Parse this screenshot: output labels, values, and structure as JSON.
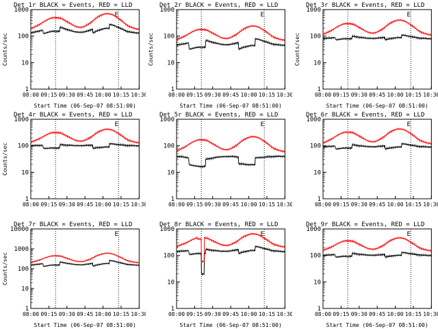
{
  "chart_data": [
    {
      "type": "line",
      "title": "Det 1r BLACK = Events, RED = LLD",
      "xlabel": "Start Time (06-Sep-07 08:51:00)",
      "ylabel": "Counts/sec",
      "log_y": true,
      "ylim": [
        1,
        1000
      ],
      "xlim": [
        0,
        105
      ],
      "x_tick_labels": [
        "08:00",
        "09:15",
        "09:30",
        "09:45",
        "10:00",
        "10:15",
        "10:30"
      ],
      "y_tick_labels": [
        "1",
        "10",
        "100",
        "1000"
      ],
      "markers": [
        {
          "x": 24,
          "label": ""
        },
        {
          "x": 85,
          "label": "E"
        }
      ],
      "series": [
        {
          "color": "#000000",
          "shape": {
            "base": 130,
            "peak1": 220,
            "peak2": 280,
            "center1": 24,
            "center2": 74,
            "width1": 10,
            "width2": 10,
            "step_x": [
              12,
              60
            ],
            "step_depth": 0.7
          }
        },
        {
          "color": "#ff0000",
          "shape": {
            "base": 180,
            "peak1": 500,
            "peak2": 700,
            "center1": 24,
            "center2": 74,
            "width1": 10,
            "width2": 10
          }
        }
      ]
    },
    {
      "type": "line",
      "title": "Det 2r BLACK = Events, RED = LLD",
      "xlabel": "Start Time (06-Sep-07 08:51:00)",
      "ylabel": "Counts/sec",
      "log_y": true,
      "ylim": [
        1,
        1000
      ],
      "xlim": [
        0,
        105
      ],
      "x_tick_labels": [
        "08:00",
        "09:15",
        "09:30",
        "09:45",
        "10:00",
        "10:15",
        "10:30"
      ],
      "y_tick_labels": [
        "1",
        "10",
        "100",
        "1000"
      ],
      "markers": [
        {
          "x": 24,
          "label": ""
        },
        {
          "x": 85,
          "label": "E"
        }
      ],
      "series": [
        {
          "color": "#000000",
          "shape": {
            "base": 45,
            "peak1": 70,
            "peak2": 80,
            "center1": 24,
            "center2": 74,
            "width1": 10,
            "width2": 10,
            "step_x": [
              12,
              60
            ],
            "step_depth": 0.55
          }
        },
        {
          "color": "#ff0000",
          "shape": {
            "base": 70,
            "peak1": 180,
            "peak2": 240,
            "center1": 24,
            "center2": 74,
            "width1": 10,
            "width2": 10
          }
        }
      ]
    },
    {
      "type": "line",
      "title": "Det 3r BLACK = Events, RED = LLD",
      "xlabel": "Start Time (06-Sep-07 08:51:00)",
      "ylabel": "Counts/sec",
      "log_y": true,
      "ylim": [
        1,
        1000
      ],
      "xlim": [
        0,
        105
      ],
      "x_tick_labels": [
        "08:00",
        "09:15",
        "09:30",
        "09:45",
        "10:00",
        "10:15",
        "10:30"
      ],
      "y_tick_labels": [
        "1",
        "10",
        "100",
        "1000"
      ],
      "markers": [
        {
          "x": 24,
          "label": ""
        },
        {
          "x": 85,
          "label": "E"
        }
      ],
      "series": [
        {
          "color": "#000000",
          "shape": {
            "base": 80,
            "peak1": 100,
            "peak2": 110,
            "center1": 24,
            "center2": 74,
            "width1": 10,
            "width2": 10,
            "step_x": [
              12,
              60
            ],
            "step_depth": 0.8
          }
        },
        {
          "color": "#ff0000",
          "shape": {
            "base": 110,
            "peak1": 300,
            "peak2": 400,
            "center1": 24,
            "center2": 74,
            "width1": 10,
            "width2": 10
          }
        }
      ]
    },
    {
      "type": "line",
      "title": "Det 4r BLACK = Events, RED = LLD",
      "xlabel": "",
      "ylabel": "Counts/sec",
      "log_y": true,
      "ylim": [
        1,
        1000
      ],
      "xlim": [
        0,
        105
      ],
      "x_tick_labels": [
        "08:00",
        "09:15",
        "09:30",
        "09:45",
        "10:00",
        "10:15",
        "10:30"
      ],
      "y_tick_labels": [
        "1",
        "10",
        "100",
        "1000"
      ],
      "markers": [
        {
          "x": 24,
          "label": ""
        },
        {
          "x": 85,
          "label": "E"
        }
      ],
      "series": [
        {
          "color": "#000000",
          "shape": {
            "base": 100,
            "peak1": 110,
            "peak2": 120,
            "center1": 24,
            "center2": 74,
            "width1": 10,
            "width2": 10,
            "step_x": [
              12,
              60
            ],
            "step_depth": 0.75
          }
        },
        {
          "color": "#ff0000",
          "shape": {
            "base": 130,
            "peak1": 320,
            "peak2": 420,
            "center1": 24,
            "center2": 74,
            "width1": 10,
            "width2": 10
          }
        }
      ]
    },
    {
      "type": "line",
      "title": "Det 5r BLACK = Events, RED = LLD",
      "xlabel": "",
      "ylabel": "",
      "log_y": true,
      "ylim": [
        1,
        1000
      ],
      "xlim": [
        0,
        105
      ],
      "x_tick_labels": [
        "08:00",
        "09:15",
        "09:30",
        "09:45",
        "10:00",
        "10:15",
        "10:30"
      ],
      "y_tick_labels": [
        "1",
        "10",
        "100",
        "1000"
      ],
      "markers": [
        {
          "x": 24,
          "label": ""
        },
        {
          "x": 85,
          "label": "E"
        }
      ],
      "series": [
        {
          "color": "#000000",
          "shape": {
            "base": 40,
            "peak1": 30,
            "peak2": 35,
            "center1": 24,
            "center2": 74,
            "width1": 10,
            "width2": 10,
            "step_x": [
              12,
              60
            ],
            "step_depth": 0.55
          }
        },
        {
          "color": "#ff0000",
          "shape": {
            "base": 60,
            "peak1": 170,
            "peak2": 220,
            "center1": 24,
            "center2": 74,
            "width1": 10,
            "width2": 10
          }
        }
      ]
    },
    {
      "type": "line",
      "title": "Det 6r BLACK = Events, RED = LLD",
      "xlabel": "",
      "ylabel": "",
      "log_y": true,
      "ylim": [
        1,
        1000
      ],
      "xlim": [
        0,
        105
      ],
      "x_tick_labels": [
        "08:00",
        "09:15",
        "09:30",
        "09:45",
        "10:00",
        "10:15",
        "10:30"
      ],
      "y_tick_labels": [
        "1",
        "10",
        "100",
        "1000"
      ],
      "markers": [
        {
          "x": 24,
          "label": ""
        },
        {
          "x": 85,
          "label": "E"
        }
      ],
      "series": [
        {
          "color": "#000000",
          "shape": {
            "base": 90,
            "peak1": 110,
            "peak2": 120,
            "center1": 24,
            "center2": 74,
            "width1": 10,
            "width2": 10,
            "step_x": [
              12,
              60
            ],
            "step_depth": 0.75
          }
        },
        {
          "color": "#ff0000",
          "shape": {
            "base": 120,
            "peak1": 330,
            "peak2": 430,
            "center1": 24,
            "center2": 74,
            "width1": 10,
            "width2": 10
          }
        }
      ]
    },
    {
      "type": "line",
      "title": "Det 7r BLACK = Events, RED = LLD",
      "xlabel": "Start Time (06-Sep-07 08:51:00)",
      "ylabel": "Counts/sec",
      "log_y": true,
      "ylim": [
        1,
        10000
      ],
      "xlim": [
        0,
        105
      ],
      "x_tick_labels": [
        "08:00",
        "09:15",
        "09:30",
        "09:45",
        "10:00",
        "10:15",
        "10:30"
      ],
      "y_tick_labels": [
        "1",
        "10",
        "100",
        "1000",
        "10000"
      ],
      "markers": [
        {
          "x": 24,
          "label": ""
        },
        {
          "x": 85,
          "label": "E"
        }
      ],
      "series": [
        {
          "color": "#000000",
          "shape": {
            "base": 150,
            "peak1": 220,
            "peak2": 260,
            "center1": 24,
            "center2": 74,
            "width1": 10,
            "width2": 10,
            "step_x": [
              12,
              60
            ],
            "step_depth": 0.7
          }
        },
        {
          "color": "#ff0000",
          "shape": {
            "base": 200,
            "peak1": 450,
            "peak2": 600,
            "center1": 24,
            "center2": 74,
            "width1": 10,
            "width2": 10
          }
        }
      ]
    },
    {
      "type": "line",
      "title": "Det 8r BLACK = Events, RED = LLD",
      "xlabel": "Start Time (06-Sep-07 08:51:00)",
      "ylabel": "",
      "log_y": true,
      "ylim": [
        1,
        1000
      ],
      "xlim": [
        0,
        105
      ],
      "x_tick_labels": [
        "08:00",
        "09:15",
        "09:30",
        "09:45",
        "10:00",
        "10:15",
        "10:30"
      ],
      "y_tick_labels": [
        "1",
        "10",
        "100",
        "1000"
      ],
      "markers": [
        {
          "x": 24,
          "label": ""
        },
        {
          "x": 85,
          "label": "E"
        }
      ],
      "series": [
        {
          "color": "#000000",
          "shape": {
            "base": 140,
            "peak1": 170,
            "peak2": 220,
            "center1": 24,
            "center2": 74,
            "width1": 10,
            "width2": 10,
            "step_x": [
              12,
              60
            ],
            "step_depth": 0.7,
            "dip": {
              "x": [
                24,
                27
              ],
              "value": 20
            }
          }
        },
        {
          "color": "#ff0000",
          "shape": {
            "base": 210,
            "peak1": 480,
            "peak2": 650,
            "center1": 24,
            "center2": 74,
            "width1": 10,
            "width2": 10,
            "spike": {
              "x": [
                20,
                24
              ],
              "value": 420
            },
            "dip": {
              "x": [
                24,
                27
              ],
              "value": 60
            }
          }
        }
      ]
    },
    {
      "type": "line",
      "title": "Det 9r BLACK = Events, RED = LLD",
      "xlabel": "Start Time (06-Sep-07 08:51:00)",
      "ylabel": "",
      "log_y": true,
      "ylim": [
        1,
        1000
      ],
      "xlim": [
        0,
        105
      ],
      "x_tick_labels": [
        "08:00",
        "09:15",
        "09:30",
        "09:45",
        "10:00",
        "10:15",
        "10:30"
      ],
      "y_tick_labels": [
        "1",
        "10",
        "100",
        "1000"
      ],
      "markers": [
        {
          "x": 24,
          "label": ""
        },
        {
          "x": 85,
          "label": "E"
        }
      ],
      "series": [
        {
          "color": "#000000",
          "shape": {
            "base": 100,
            "peak1": 120,
            "peak2": 130,
            "center1": 24,
            "center2": 74,
            "width1": 10,
            "width2": 10,
            "step_x": [
              12,
              60
            ],
            "step_depth": 0.78
          }
        },
        {
          "color": "#ff0000",
          "shape": {
            "base": 150,
            "peak1": 360,
            "peak2": 460,
            "center1": 24,
            "center2": 74,
            "width1": 10,
            "width2": 10
          }
        }
      ]
    }
  ]
}
